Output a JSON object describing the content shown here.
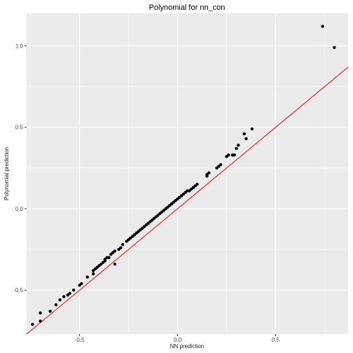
{
  "chart_data": {
    "type": "scatter",
    "title": "Polynomial for nn_con",
    "xlabel": "NN prediction",
    "ylabel": "Polynomial prediction",
    "xlim": [
      -0.77,
      0.87
    ],
    "ylim": [
      -0.77,
      1.2
    ],
    "xticks": [
      -0.5,
      0.0,
      0.5
    ],
    "xtick_labels": [
      "-0.5",
      "0.0",
      "0.5"
    ],
    "yticks": [
      -0.5,
      0.0,
      0.5,
      1.0
    ],
    "ytick_labels": [
      "-0.5",
      "0.0",
      "0.5",
      "1.0"
    ],
    "grid": true,
    "colors": {
      "panel": "#ebebeb",
      "grid_major": "#ffffff",
      "points": "#000000",
      "reference_line": "#ff0000",
      "tick_text": "#4d4d4d"
    },
    "reference_line": {
      "intercept": 0,
      "slope": 1
    },
    "points": {
      "x": [
        -0.74,
        -0.7,
        -0.7,
        -0.65,
        -0.62,
        -0.6,
        -0.58,
        -0.56,
        -0.55,
        -0.53,
        -0.5,
        -0.49,
        -0.46,
        -0.43,
        -0.43,
        -0.42,
        -0.41,
        -0.4,
        -0.39,
        -0.38,
        -0.37,
        -0.37,
        -0.36,
        -0.35,
        -0.34,
        -0.33,
        -0.32,
        -0.32,
        -0.3,
        -0.29,
        -0.28,
        -0.26,
        -0.25,
        -0.24,
        -0.23,
        -0.22,
        -0.21,
        -0.2,
        -0.19,
        -0.18,
        -0.17,
        -0.16,
        -0.15,
        -0.14,
        -0.13,
        -0.12,
        -0.11,
        -0.1,
        -0.09,
        -0.08,
        -0.07,
        -0.06,
        -0.05,
        -0.04,
        -0.03,
        -0.02,
        -0.01,
        0.0,
        0.01,
        0.02,
        0.03,
        0.04,
        0.05,
        0.06,
        0.07,
        0.08,
        0.09,
        0.1,
        0.15,
        0.15,
        0.16,
        0.2,
        0.21,
        0.22,
        0.25,
        0.26,
        0.28,
        0.29,
        0.3,
        0.31,
        0.34,
        0.35,
        0.38,
        0.74,
        0.8
      ],
      "y": [
        -0.71,
        -0.69,
        -0.64,
        -0.63,
        -0.59,
        -0.56,
        -0.54,
        -0.53,
        -0.52,
        -0.5,
        -0.47,
        -0.46,
        -0.42,
        -0.4,
        -0.38,
        -0.37,
        -0.36,
        -0.35,
        -0.34,
        -0.33,
        -0.32,
        -0.31,
        -0.3,
        -0.3,
        -0.28,
        -0.27,
        -0.26,
        -0.34,
        -0.25,
        -0.24,
        -0.22,
        -0.2,
        -0.19,
        -0.18,
        -0.17,
        -0.16,
        -0.15,
        -0.14,
        -0.13,
        -0.12,
        -0.11,
        -0.1,
        -0.09,
        -0.08,
        -0.07,
        -0.06,
        -0.05,
        -0.04,
        -0.03,
        -0.02,
        -0.01,
        0.0,
        0.01,
        0.02,
        0.03,
        0.04,
        0.05,
        0.06,
        0.07,
        0.08,
        0.09,
        0.1,
        0.11,
        0.11,
        0.12,
        0.13,
        0.14,
        0.15,
        0.2,
        0.21,
        0.22,
        0.25,
        0.26,
        0.27,
        0.32,
        0.33,
        0.33,
        0.33,
        0.37,
        0.39,
        0.46,
        0.43,
        0.49,
        1.12,
        0.99
      ]
    }
  }
}
